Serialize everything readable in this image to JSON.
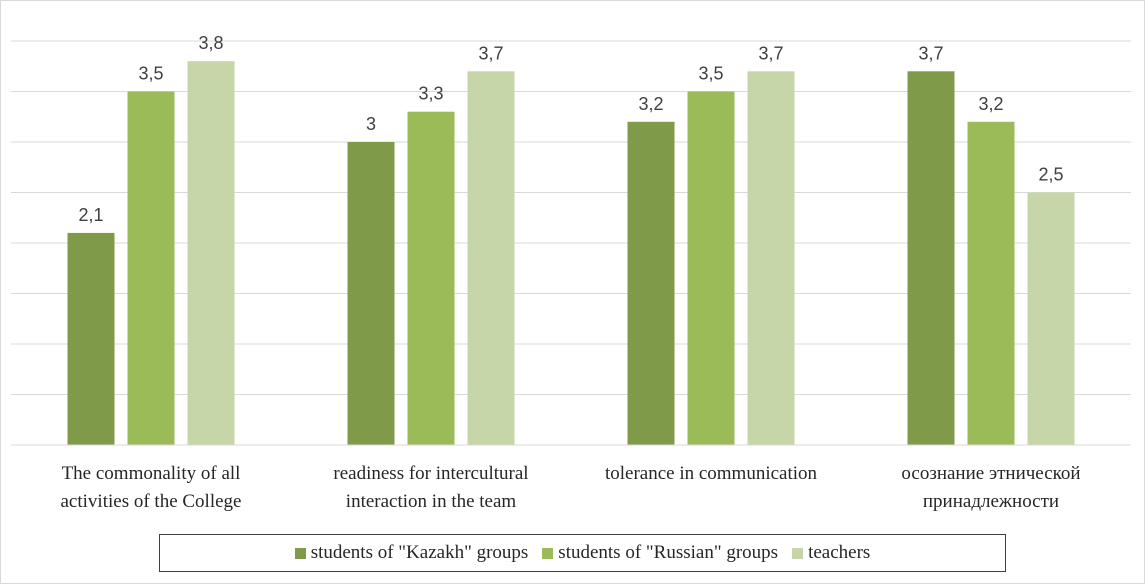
{
  "chart_data": {
    "type": "bar",
    "categories": [
      [
        "The commonality of all",
        "activities of the College"
      ],
      [
        "readiness for intercultural",
        "interaction in the team"
      ],
      [
        "tolerance in communication"
      ],
      [
        "осознание этнической",
        "принадлежности"
      ]
    ],
    "series": [
      {
        "name": "students of \"Kazakh\" groups",
        "values": [
          2.1,
          3,
          3.2,
          3.7
        ],
        "labels": [
          "2,1",
          "3",
          "3,2",
          "3,7"
        ],
        "color": "#7f9a48"
      },
      {
        "name": "students of \"Russian\" groups",
        "values": [
          3.5,
          3.3,
          3.5,
          3.2
        ],
        "labels": [
          "3,5",
          "3,3",
          "3,5",
          "3,2"
        ],
        "color": "#9bbb59"
      },
      {
        "name": "teachers",
        "values": [
          3.8,
          3.7,
          3.7,
          2.5
        ],
        "labels": [
          "3,8",
          "3,7",
          "3,7",
          "2,5"
        ],
        "color": "#c6d6a8"
      }
    ],
    "ylim": [
      0,
      4
    ],
    "gridlines": true,
    "legend_position": "bottom",
    "title": "",
    "xlabel": "",
    "ylabel": ""
  }
}
